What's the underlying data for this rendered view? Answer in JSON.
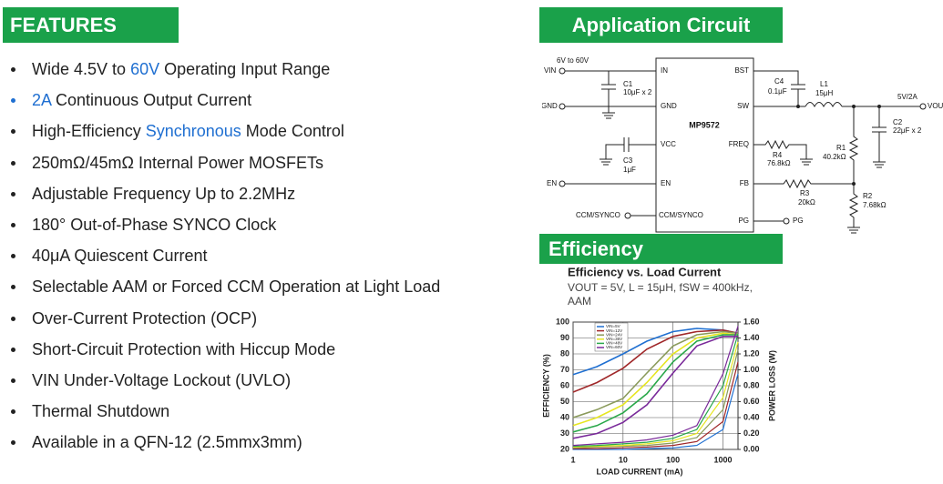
{
  "features": {
    "title": "FEATURES",
    "items": [
      {
        "parts": [
          {
            "text": "Wide 4.5V to "
          },
          {
            "text": "60V",
            "highlight": true
          },
          {
            "text": " Operating Input Range"
          }
        ]
      },
      {
        "bullet_highlight": true,
        "parts": [
          {
            "text": "2A",
            "highlight": true
          },
          {
            "text": " Continuous Output Current"
          }
        ]
      },
      {
        "parts": [
          {
            "text": "High-Efficiency "
          },
          {
            "text": "Synchronous",
            "highlight": true
          },
          {
            "text": " Mode Control"
          }
        ]
      },
      {
        "parts": [
          {
            "text": "250mΩ/45mΩ Internal Power MOSFETs"
          }
        ]
      },
      {
        "parts": [
          {
            "text": "Adjustable Frequency Up to 2.2MHz"
          }
        ]
      },
      {
        "parts": [
          {
            "text": "180°  Out-of-Phase SYNCO Clock"
          }
        ]
      },
      {
        "parts": [
          {
            "text": "40μA Quiescent Current"
          }
        ]
      },
      {
        "parts": [
          {
            "text": "Selectable AAM or Forced CCM Operation at Light Load"
          }
        ]
      },
      {
        "parts": [
          {
            "text": "Over-Current Protection (OCP)"
          }
        ]
      },
      {
        "parts": [
          {
            "text": "Short-Circuit Protection with Hiccup Mode"
          }
        ]
      },
      {
        "parts": [
          {
            "text": "VIN Under-Voltage Lockout (UVLO)"
          }
        ]
      },
      {
        "parts": [
          {
            "text": "Thermal Shutdown"
          }
        ]
      },
      {
        "parts": [
          {
            "text": "Available in a QFN-12 (2.5mmx3mm)"
          }
        ]
      }
    ]
  },
  "circuit": {
    "title": "Application Circuit",
    "labels": [
      "6V to 60V",
      "VIN",
      "C1",
      "10μF x 2",
      "GND",
      "C3",
      "1μF",
      "EN",
      "CCM/SYNCO",
      "IN",
      "GND",
      "VCC",
      "EN",
      "CCM/SYNCO",
      "MP9572",
      "BST",
      "SW",
      "FREQ",
      "FB",
      "PG",
      "C4",
      "0.1μF",
      "L1",
      "15μH",
      "R4",
      "76.8kΩ",
      "R1",
      "40.2kΩ",
      "R3",
      "20kΩ",
      "R2",
      "7.68kΩ",
      "5V/2A",
      "VOUT",
      "C2",
      "22μF x 2",
      "PG"
    ]
  },
  "efficiency": {
    "title": "Efficiency",
    "chart_data": {
      "type": "line",
      "title": "Efficiency vs. Load Current",
      "subtitle": [
        "VOUT = 5V, L = 15μH, fSW = 400kHz,",
        "AAM"
      ],
      "x_label": "LOAD CURRENT (mA)",
      "y_label": "EFFICIENCY (%)",
      "y2_label": "POWER LOSS (W)",
      "log_x": true,
      "x": [
        1,
        3,
        10,
        30,
        100,
        300,
        1000,
        2000
      ],
      "xlim": [
        1,
        2000
      ],
      "xticks": [
        1,
        10,
        100,
        1000
      ],
      "ylim": [
        20,
        100
      ],
      "yticks": [
        20,
        30,
        40,
        50,
        60,
        70,
        80,
        90,
        100
      ],
      "y2lim": [
        0,
        1.6
      ],
      "y2ticks": [
        {
          "value": 0,
          "label": "0.00"
        },
        {
          "value": 0.2,
          "label": "0.20"
        },
        {
          "value": 0.4,
          "label": "0.40"
        },
        {
          "value": 0.6,
          "label": "0.60"
        },
        {
          "value": 0.8,
          "label": "0.80"
        },
        {
          "value": 1,
          "label": "1.00"
        },
        {
          "value": 1.2,
          "label": "1.20"
        },
        {
          "value": 1.4,
          "label": "1.40"
        },
        {
          "value": 1.6,
          "label": "1.60"
        }
      ],
      "grid": true,
      "legend": "upper left",
      "series": [
        {
          "name": "VIN=5V",
          "color": "#1f6fd1",
          "values": [
            67,
            72,
            80,
            88,
            94,
            96,
            95,
            93
          ],
          "loss": [
            0,
            0,
            0,
            0.01,
            0.02,
            0.05,
            0.25,
            0.95
          ]
        },
        {
          "name": "VIN=12V",
          "color": "#a0282a",
          "values": [
            56,
            62,
            71,
            83,
            91,
            94,
            95,
            93
          ],
          "loss": [
            0.01,
            0.01,
            0.02,
            0.03,
            0.05,
            0.1,
            0.35,
            1.1
          ]
        },
        {
          "name": "VIN=24V",
          "color": "#8a9a5b",
          "values": [
            40,
            45,
            52,
            68,
            85,
            92,
            94,
            93
          ],
          "loss": [
            0.02,
            0.03,
            0.04,
            0.05,
            0.08,
            0.15,
            0.5,
            1.25
          ]
        },
        {
          "name": "VIN=36V",
          "color": "#e6e620",
          "values": [
            35,
            40,
            48,
            62,
            80,
            90,
            93,
            92
          ],
          "loss": [
            0.03,
            0.04,
            0.05,
            0.07,
            0.11,
            0.2,
            0.65,
            1.35
          ]
        },
        {
          "name": "VIN=48V",
          "color": "#2aa84a",
          "values": [
            31,
            35,
            43,
            55,
            75,
            88,
            92,
            92
          ],
          "loss": [
            0.04,
            0.05,
            0.07,
            0.09,
            0.14,
            0.25,
            0.8,
            1.45
          ]
        },
        {
          "name": "VIN=60V",
          "color": "#7a2a9a",
          "values": [
            27,
            30,
            37,
            48,
            68,
            85,
            91,
            91
          ],
          "loss": [
            0.05,
            0.07,
            0.09,
            0.12,
            0.18,
            0.3,
            0.95,
            1.55
          ]
        }
      ]
    }
  }
}
